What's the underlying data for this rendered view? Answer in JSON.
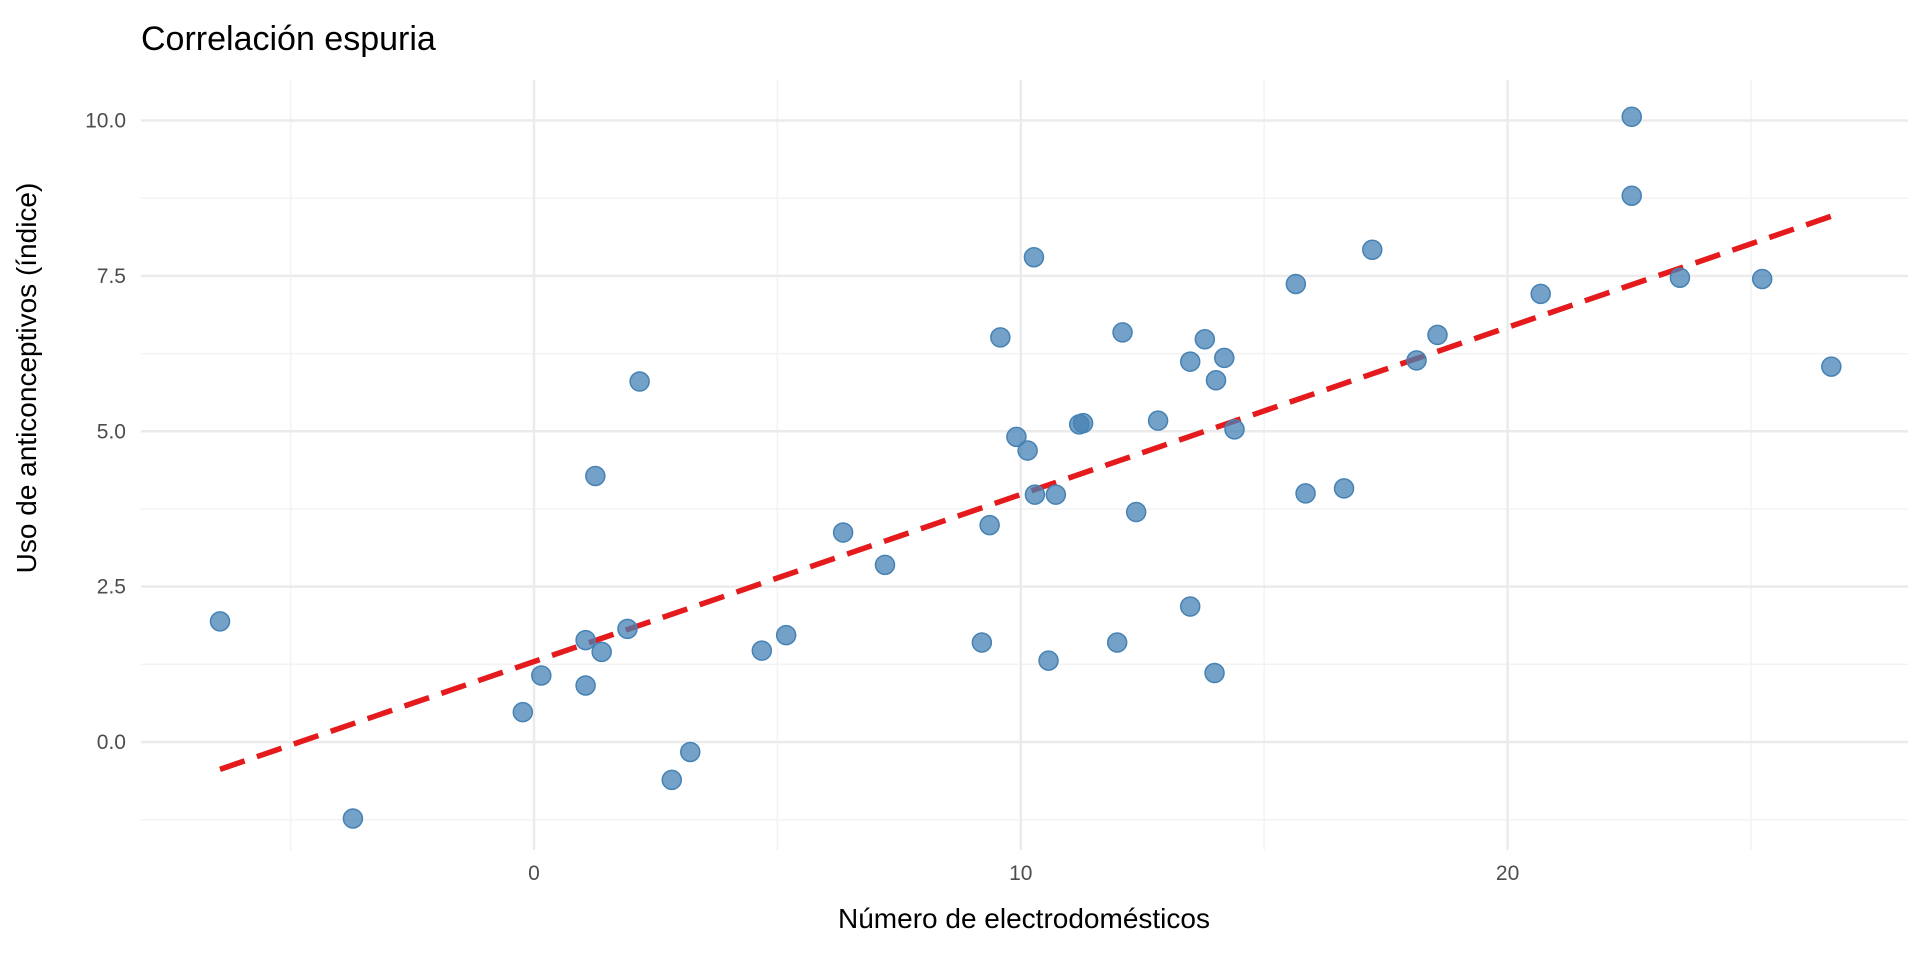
{
  "chart_data": {
    "type": "scatter",
    "title": "Correlación espuria",
    "xlabel": "Número de electrodomésticos",
    "ylabel": "Uso de anticonceptivos (índice)",
    "xlim": [
      -8,
      28.2
    ],
    "ylim": [
      -1.8,
      10.7
    ],
    "x_ticks": [
      0,
      10,
      20
    ],
    "x_tick_labels": [
      "0",
      "10",
      "20"
    ],
    "y_ticks": [
      0,
      2.5,
      5,
      7.5,
      10
    ],
    "y_tick_labels": [
      "0.0",
      "2.5",
      "5.0",
      "7.5",
      "10.0"
    ],
    "grid": true,
    "point_color": "#4682B4",
    "line_color": "#E41A1C",
    "points": [
      [
        -6.45,
        1.94
      ],
      [
        -3.72,
        -1.23
      ],
      [
        -0.23,
        0.48
      ],
      [
        0.15,
        1.07
      ],
      [
        1.06,
        1.64
      ],
      [
        1.06,
        0.91
      ],
      [
        1.39,
        1.45
      ],
      [
        1.26,
        4.28
      ],
      [
        2.17,
        5.8
      ],
      [
        1.92,
        1.82
      ],
      [
        2.83,
        -0.61
      ],
      [
        3.21,
        -0.16
      ],
      [
        4.68,
        1.47
      ],
      [
        5.18,
        1.72
      ],
      [
        6.35,
        3.37
      ],
      [
        7.21,
        2.85
      ],
      [
        9.2,
        1.6
      ],
      [
        9.36,
        3.49
      ],
      [
        9.58,
        6.51
      ],
      [
        9.91,
        4.91
      ],
      [
        10.14,
        4.69
      ],
      [
        10.29,
        3.98
      ],
      [
        10.27,
        7.8
      ],
      [
        10.57,
        1.31
      ],
      [
        10.72,
        3.98
      ],
      [
        11.2,
        5.11
      ],
      [
        11.28,
        5.13
      ],
      [
        11.98,
        1.6
      ],
      [
        12.09,
        6.59
      ],
      [
        12.37,
        3.7
      ],
      [
        12.82,
        5.17
      ],
      [
        13.48,
        6.12
      ],
      [
        13.48,
        2.18
      ],
      [
        13.78,
        6.48
      ],
      [
        14.01,
        5.82
      ],
      [
        13.98,
        1.11
      ],
      [
        14.18,
        6.18
      ],
      [
        14.39,
        5.03
      ],
      [
        15.65,
        7.37
      ],
      [
        15.85,
        4.0
      ],
      [
        16.64,
        4.08
      ],
      [
        17.22,
        7.92
      ],
      [
        18.13,
        6.14
      ],
      [
        18.56,
        6.55
      ],
      [
        20.68,
        7.21
      ],
      [
        22.55,
        10.06
      ],
      [
        22.55,
        8.79
      ],
      [
        23.54,
        7.47
      ],
      [
        25.23,
        7.45
      ],
      [
        26.65,
        6.04
      ]
    ],
    "trend_line": {
      "type": "linear fit",
      "x": [
        -6.45,
        26.65
      ],
      "y": [
        -0.44,
        8.46
      ]
    }
  }
}
